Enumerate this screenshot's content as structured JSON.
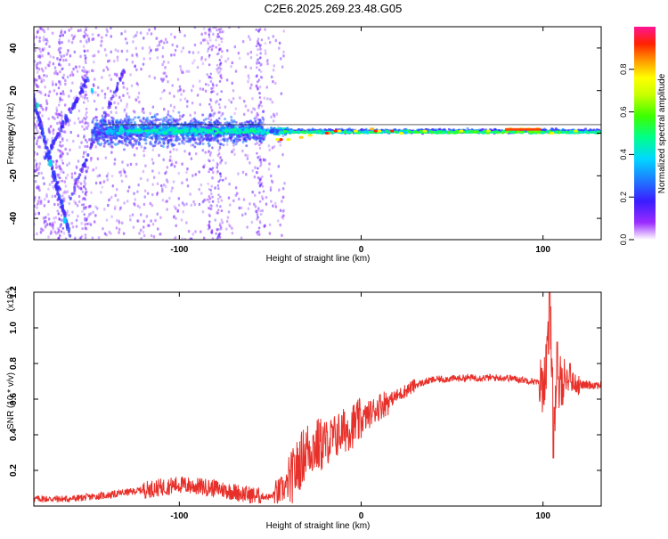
{
  "title": "C2E6.2025.269.23.48.G05",
  "chart_data": [
    {
      "type": "heatmap",
      "title": "C2E6.2025.269.23.48.G05",
      "xlabel": "Height of straight line (km)",
      "ylabel": "Frequency (Hz)",
      "xlim": [
        -180,
        132
      ],
      "ylim": [
        -50,
        50
      ],
      "xticks": [
        -100,
        0,
        100
      ],
      "yticks": [
        -40,
        -20,
        0,
        20,
        40
      ],
      "colorbar": {
        "label": "Normalized spectral amplitude",
        "range": [
          0,
          1
        ],
        "ticks": [
          0.0,
          0.2,
          0.4,
          0.6,
          0.8
        ]
      },
      "features": [
        {
          "name": "main-band",
          "x_range": [
            -140,
            132
          ],
          "center_hz": 1,
          "desc": "strong narrow band near 0 Hz"
        },
        {
          "name": "descending-trace-1",
          "from": [
            -182,
            22
          ],
          "to": [
            -160,
            -45
          ]
        },
        {
          "name": "ascending-trace",
          "from": [
            -170,
            -10
          ],
          "to": [
            -150,
            25
          ]
        }
      ]
    },
    {
      "type": "line",
      "xlabel": "Height of straight line (km)",
      "ylabel": "SNR (10 * v/v)",
      "y_multiplier": "(x10",
      "y_multiplier_exp": "4",
      "y_multiplier_close": ")",
      "xlim": [
        -180,
        132
      ],
      "ylim": [
        0,
        1.2
      ],
      "xticks": [
        -100,
        0,
        100
      ],
      "yticks": [
        0.2,
        0.4,
        0.6,
        0.8,
        1.0,
        1.2
      ],
      "series": [
        {
          "name": "SNR",
          "color": "#e8302a",
          "x": [
            -180,
            -160,
            -140,
            -120,
            -100,
            -80,
            -60,
            -50,
            -45,
            -40,
            -35,
            -30,
            -20,
            -10,
            0,
            10,
            20,
            30,
            40,
            60,
            80,
            95,
            100,
            102,
            104,
            106,
            110,
            115,
            120,
            132
          ],
          "y": [
            0.04,
            0.04,
            0.06,
            0.09,
            0.12,
            0.1,
            0.06,
            0.05,
            0.08,
            0.12,
            0.22,
            0.32,
            0.35,
            0.42,
            0.48,
            0.56,
            0.62,
            0.68,
            0.71,
            0.72,
            0.72,
            0.7,
            0.68,
            0.8,
            1.05,
            0.5,
            0.72,
            0.7,
            0.68,
            0.68
          ]
        }
      ]
    }
  ]
}
